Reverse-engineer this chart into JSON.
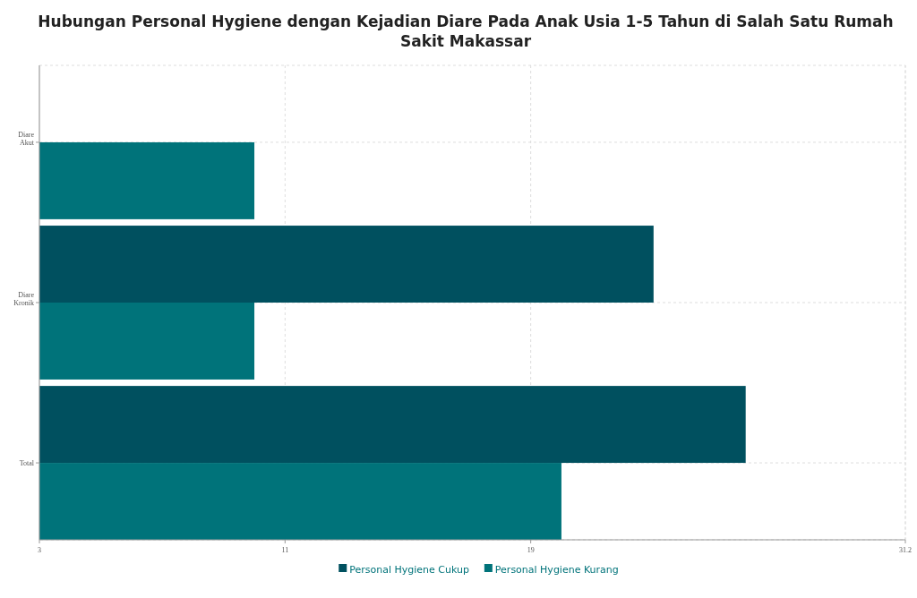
{
  "chart_data": {
    "type": "bar",
    "orientation": "horizontal",
    "title": "Hubungan Personal Hygiene dengan Kejadian Diare Pada Anak Usia 1-5 Tahun di Salah Satu Rumah Sakit Makassar",
    "categories": [
      "Diare\nAkut",
      "Diare\nKronik",
      "Total"
    ],
    "series": [
      {
        "name": "Personal Hygiene Cukup",
        "color": "#00505f",
        "values": [
          3,
          23,
          26
        ]
      },
      {
        "name": "Personal Hygiene Kurang",
        "color": "#00737a",
        "values": [
          10,
          10,
          20
        ]
      }
    ],
    "xlim": [
      3,
      31.2
    ],
    "xticks": [
      3,
      11,
      19,
      31.2
    ],
    "grid": true,
    "legend": "bottom"
  }
}
